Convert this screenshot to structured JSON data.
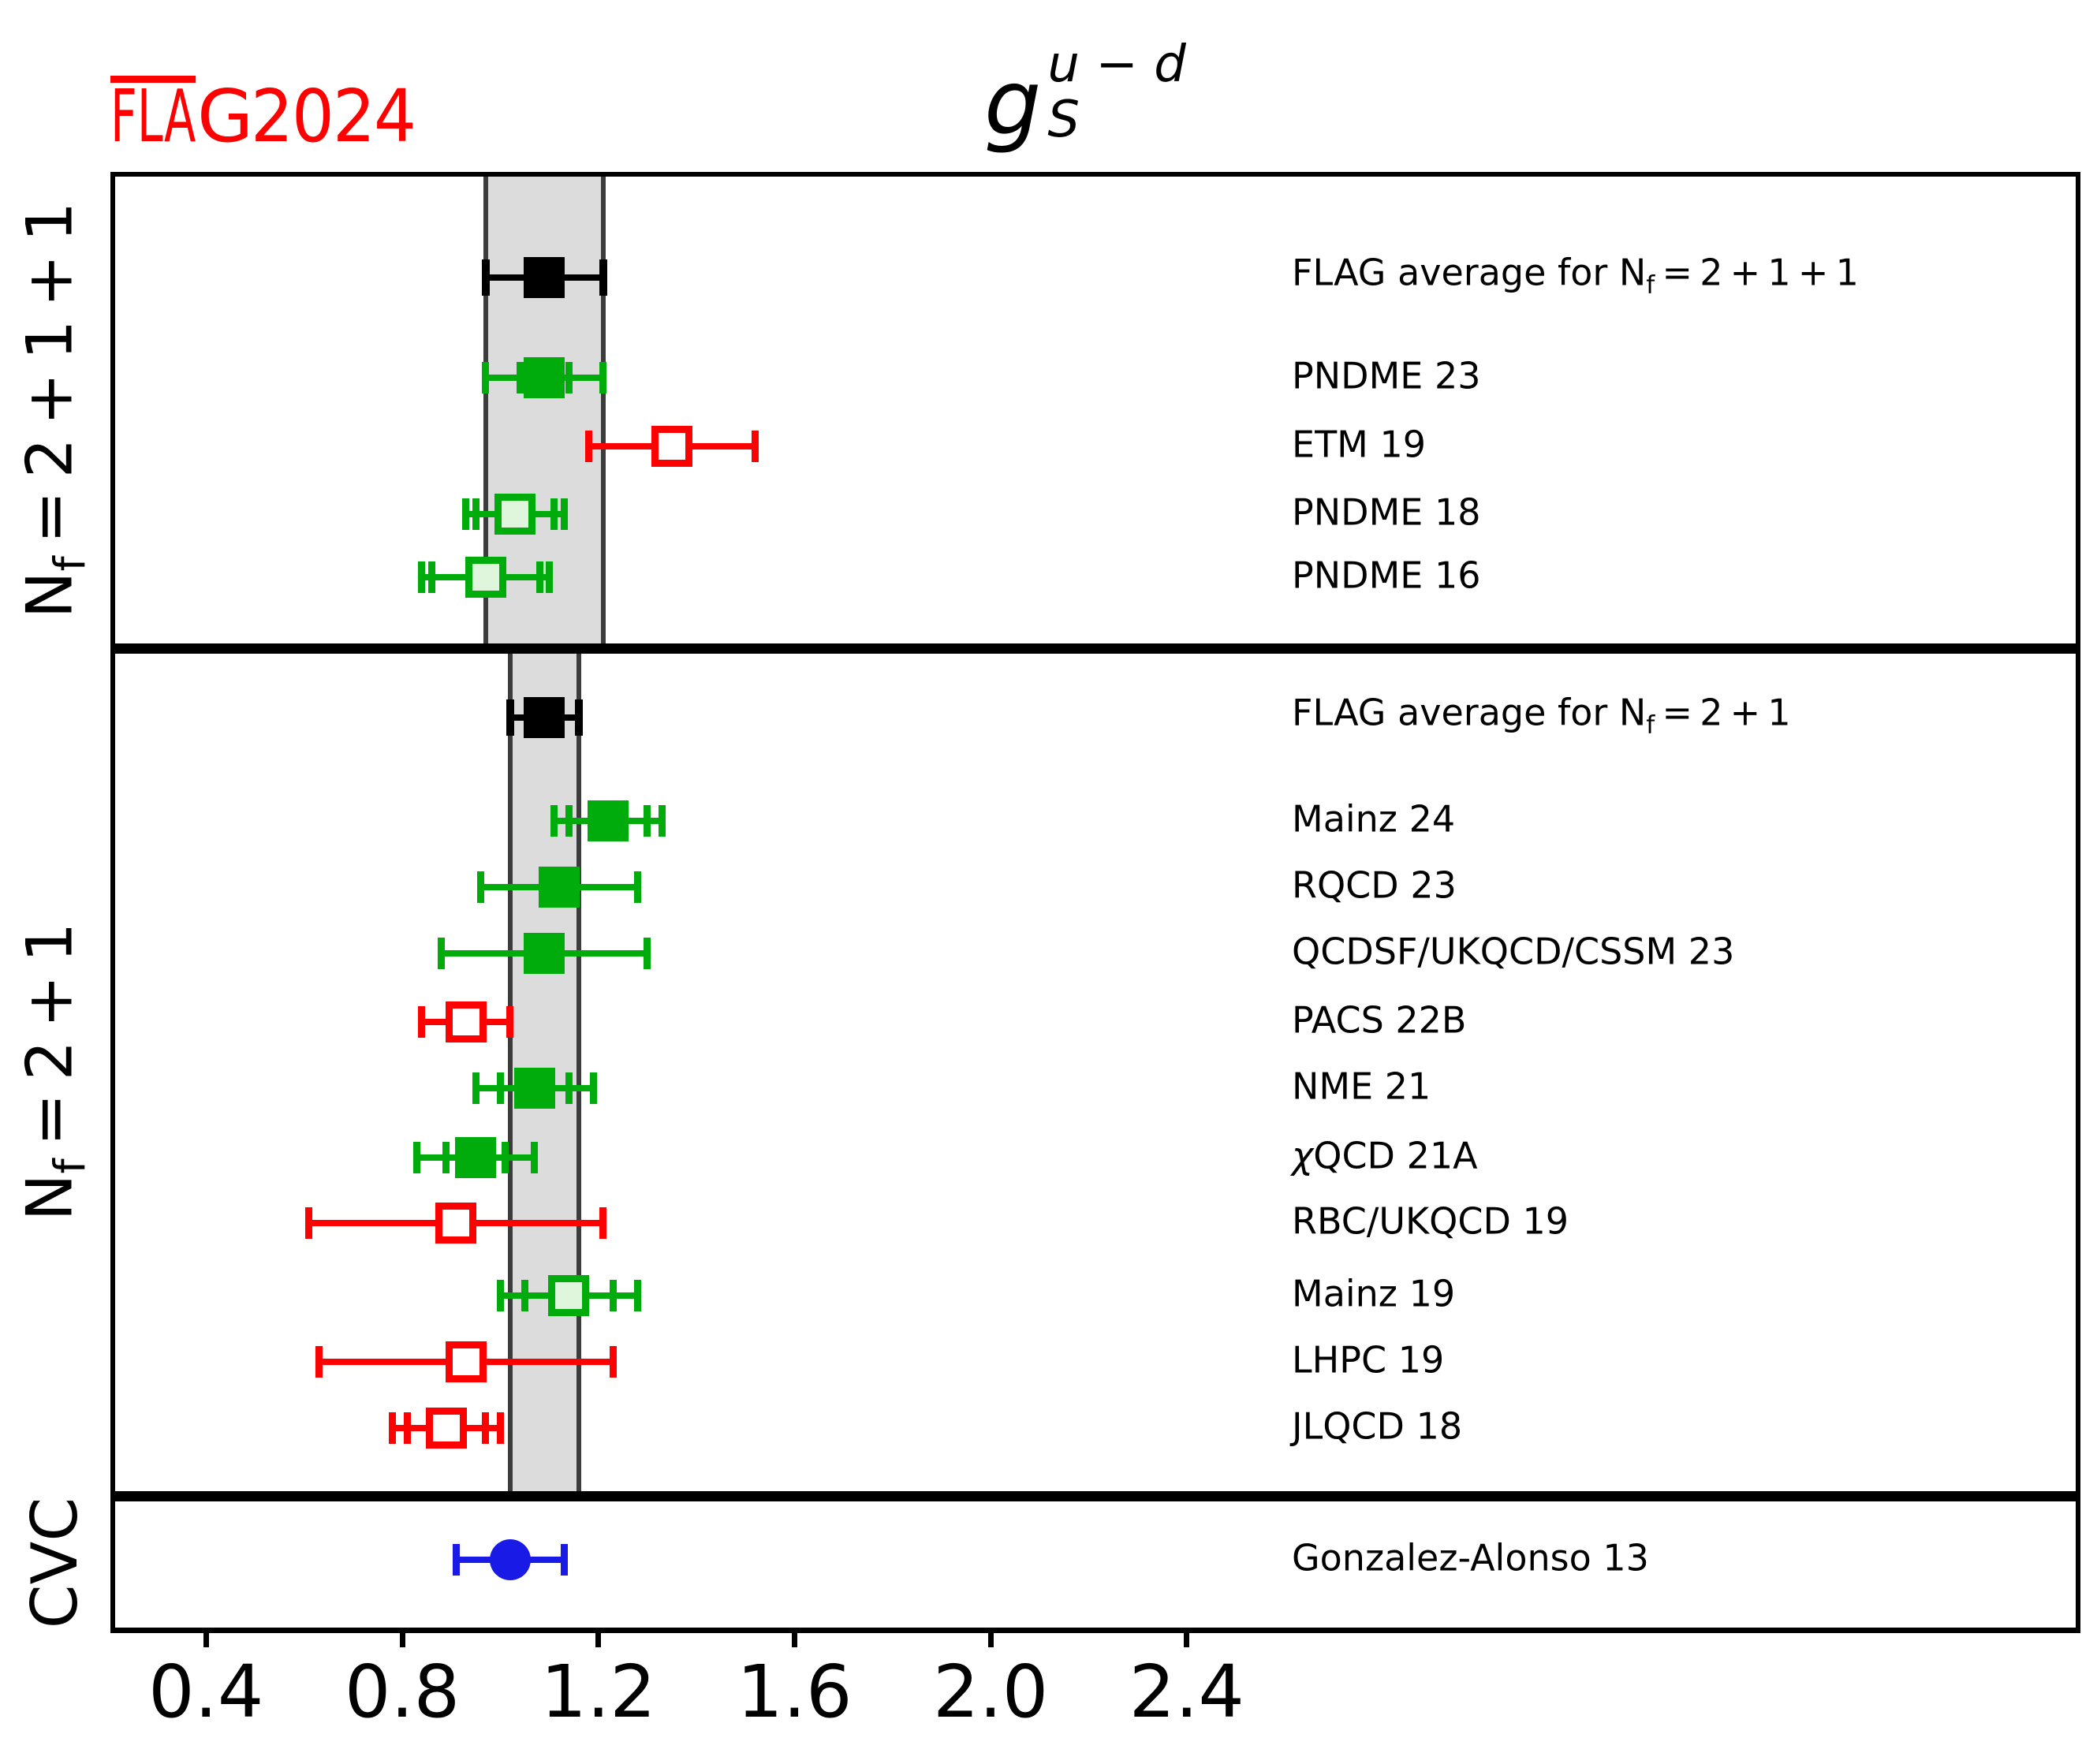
{
  "logo": {
    "fla": "FLA",
    "g": "G",
    "year": "2024",
    "color": "#ff0000"
  },
  "title": {
    "base": "g",
    "sub": "S",
    "sup": "u − d"
  },
  "x_axis": {
    "ticks": [
      "0.4",
      "0.8",
      "1.2",
      "1.6",
      "2.0",
      "2.4"
    ],
    "tick_values": [
      0.4,
      0.8,
      1.2,
      1.6,
      2.0,
      2.4
    ]
  },
  "colors": {
    "black": "#000000",
    "red": "#ff0000",
    "green": "#00ab0c",
    "pale_green_fill": "#dff5dc",
    "blue": "#1a1ae6",
    "band_fill": "#dcdcdc",
    "band_edge": "#3c3c3c",
    "logo_red": "#ff0000"
  },
  "chart_data": {
    "type": "errorbar-forest",
    "title": "g_S^{u-d}",
    "xlabel": "",
    "ylabel": "",
    "xlim": [
      0.2,
      4.22
    ],
    "x_ticks": [
      0.4,
      0.8,
      1.2,
      1.6,
      2.0,
      2.4
    ],
    "grid": false,
    "legend": null,
    "sections": [
      {
        "label": "N_f=2+1+1",
        "band": {
          "min": 0.97,
          "max": 1.21
        },
        "rows": [
          {
            "label": "FLAG average for N_f=2+1+1",
            "value": 1.09,
            "err_stat": null,
            "err_total": 0.12,
            "marker": "black-square"
          },
          {
            "label": "PNDME 23",
            "value": 1.09,
            "err_stat": 0.05,
            "err_total": 0.12,
            "marker": "green-filled-square"
          },
          {
            "label": "ETM 19",
            "value": 1.35,
            "err_stat": null,
            "err_total": 0.17,
            "marker": "red-open-square"
          },
          {
            "label": "PNDME 18",
            "value": 1.03,
            "err_stat": 0.08,
            "err_total": 0.1,
            "marker": "green-pale-square"
          },
          {
            "label": "PNDME 16",
            "value": 0.97,
            "err_stat": 0.11,
            "err_total": 0.13,
            "marker": "green-pale-square"
          }
        ]
      },
      {
        "label": "N_f=2+1",
        "band": {
          "min": 1.02,
          "max": 1.16
        },
        "rows": [
          {
            "label": "FLAG average for N_f=2+1",
            "value": 1.09,
            "err_stat": null,
            "err_total": 0.07,
            "marker": "black-square"
          },
          {
            "label": "Mainz 24",
            "value": 1.22,
            "err_stat": 0.08,
            "err_total": 0.11,
            "marker": "green-filled-square"
          },
          {
            "label": "RQCD 23",
            "value": 1.12,
            "err_stat": null,
            "err_total": 0.16,
            "marker": "green-filled-square"
          },
          {
            "label": "QCDSF/UKQCD/CSSM 23",
            "value": 1.09,
            "err_stat": null,
            "err_total": 0.21,
            "marker": "green-filled-square"
          },
          {
            "label": "PACS 22B",
            "value": 0.93,
            "err_stat": null,
            "err_total": 0.09,
            "marker": "red-open-square"
          },
          {
            "label": "NME 21",
            "value": 1.07,
            "err_stat": 0.07,
            "err_total": 0.12,
            "marker": "green-filled-square"
          },
          {
            "label": "χQCD 21A",
            "value": 0.95,
            "err_stat": 0.06,
            "err_total": 0.12,
            "marker": "green-filled-square"
          },
          {
            "label": "RBC/UKQCD 19",
            "value": 0.91,
            "err_stat": null,
            "err_total": 0.3,
            "marker": "red-open-square"
          },
          {
            "label": "Mainz 19",
            "value": 1.14,
            "err_stat": 0.09,
            "err_total": 0.14,
            "marker": "green-pale-square"
          },
          {
            "label": "LHPC 19",
            "value": 0.93,
            "err_stat": null,
            "err_total": 0.3,
            "marker": "red-open-square"
          },
          {
            "label": "JLQCD 18",
            "value": 0.89,
            "err_stat": 0.08,
            "err_total": 0.11,
            "marker": "red-open-square"
          }
        ]
      },
      {
        "label": "CVC",
        "band": null,
        "rows": [
          {
            "label": "Gonzalez-Alonso 13",
            "value": 1.02,
            "err_stat": null,
            "err_total": 0.11,
            "marker": "blue-filled-circle"
          }
        ]
      }
    ]
  }
}
